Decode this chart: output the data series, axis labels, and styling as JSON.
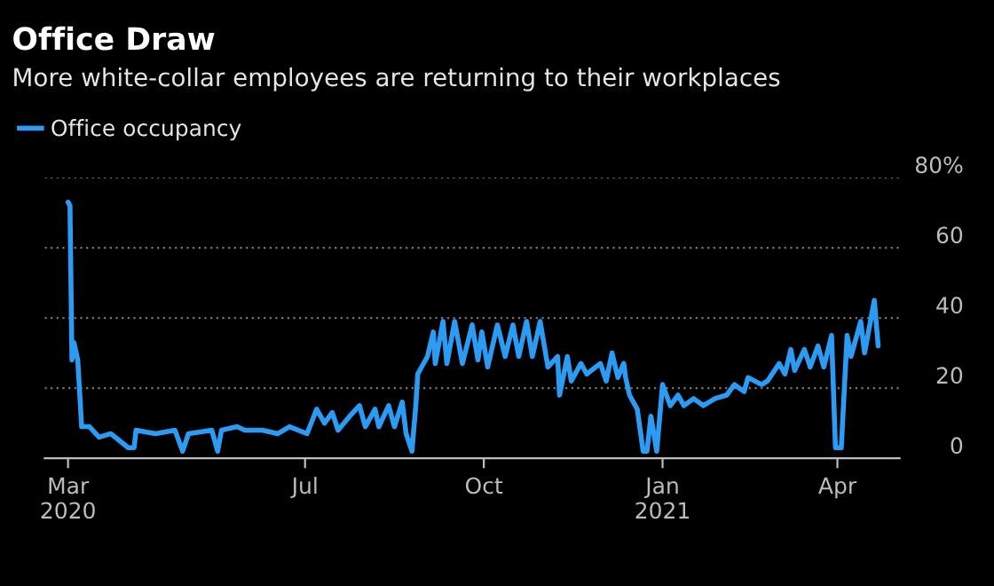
{
  "chart_data": {
    "type": "line",
    "title": "Office Draw",
    "subtitle": "More white-collar employees are returning to their workplaces",
    "xticks": [
      {
        "value": "2020-03-01",
        "label": "Mar\n2020"
      },
      {
        "value": "2020-07-01",
        "label": "Jul"
      },
      {
        "value": "2020-10-01",
        "label": "Oct"
      },
      {
        "value": "2021-01-01",
        "label": "Jan\n2021"
      },
      {
        "value": "2021-04-01",
        "label": "Apr"
      }
    ],
    "xlim": [
      "2020-02-18",
      "2021-05-03"
    ],
    "ylim": [
      0,
      80
    ],
    "yticks": [
      0,
      20,
      40,
      60,
      {
        "value": 80,
        "label": "80%"
      }
    ],
    "grid": "y",
    "legend": "top left",
    "line_style": "solid",
    "x": [
      "2020-03-01",
      "2020-03-02",
      "2020-03-03",
      "2020-03-04",
      "2020-03-06",
      "2020-03-08",
      "2020-03-12",
      "2020-03-17",
      "2020-03-23",
      "2020-04-01",
      "2020-04-04",
      "2020-04-05",
      "2020-04-15",
      "2020-04-25",
      "2020-04-29",
      "2020-05-02",
      "2020-05-14",
      "2020-05-17",
      "2020-05-19",
      "2020-05-27",
      "2020-05-31",
      "2020-06-09",
      "2020-06-17",
      "2020-06-23",
      "2020-07-02",
      "2020-07-07",
      "2020-07-11",
      "2020-07-15",
      "2020-07-18",
      "2020-07-24",
      "2020-07-29",
      "2020-08-01",
      "2020-08-06",
      "2020-08-08",
      "2020-08-13",
      "2020-08-16",
      "2020-08-20",
      "2020-08-22",
      "2020-08-25",
      "2020-08-27",
      "2020-08-28",
      "2020-09-02",
      "2020-09-05",
      "2020-09-06",
      "2020-09-10",
      "2020-09-12",
      "2020-09-16",
      "2020-09-20",
      "2020-09-25",
      "2020-09-28",
      "2020-09-30",
      "2020-10-03",
      "2020-10-08",
      "2020-10-12",
      "2020-10-16",
      "2020-10-19",
      "2020-10-23",
      "2020-10-26",
      "2020-10-30",
      "2020-11-03",
      "2020-11-08",
      "2020-11-09",
      "2020-11-13",
      "2020-11-15",
      "2020-11-20",
      "2020-11-23",
      "2020-11-30",
      "2020-12-03",
      "2020-12-06",
      "2020-12-09",
      "2020-12-12",
      "2020-12-13",
      "2020-12-15",
      "2020-12-19",
      "2020-12-22",
      "2020-12-24",
      "2020-12-26",
      "2020-12-29",
      "2021-01-01",
      "2021-01-05",
      "2021-01-09",
      "2021-01-12",
      "2021-01-17",
      "2021-01-22",
      "2021-01-28",
      "2021-02-03",
      "2021-02-07",
      "2021-02-12",
      "2021-02-14",
      "2021-02-21",
      "2021-02-24",
      "2021-03-02",
      "2021-03-05",
      "2021-03-08",
      "2021-03-10",
      "2021-03-15",
      "2021-03-18",
      "2021-03-22",
      "2021-03-25",
      "2021-03-29",
      "2021-03-31",
      "2021-04-03",
      "2021-04-06",
      "2021-04-08",
      "2021-04-13",
      "2021-04-15",
      "2021-04-20",
      "2021-04-22"
    ],
    "series": [
      {
        "name": "Office occupancy",
        "color": "#2b9bf4",
        "values": [
          73,
          72,
          28,
          33,
          28,
          9,
          9,
          6,
          7,
          3,
          3,
          8,
          7,
          8,
          2,
          7,
          8,
          2,
          8,
          9,
          8,
          8,
          7,
          9,
          7,
          14,
          10,
          13,
          8,
          12,
          15,
          9,
          14,
          9,
          15,
          9,
          16,
          7,
          2,
          15,
          24,
          29,
          36,
          27,
          39,
          27,
          39,
          27,
          38,
          28,
          36,
          26,
          38,
          29,
          38,
          29,
          39,
          29,
          39,
          26,
          29,
          18,
          29,
          22,
          27,
          24,
          27,
          22,
          30,
          23,
          27,
          23,
          18,
          14,
          2,
          2,
          12,
          2,
          21,
          15,
          18,
          15,
          17,
          15,
          17,
          18,
          21,
          19,
          23,
          21,
          22,
          27,
          24,
          31,
          25,
          31,
          26,
          32,
          26,
          35,
          3,
          3,
          35,
          29,
          39,
          30,
          45,
          32
        ]
      }
    ]
  }
}
